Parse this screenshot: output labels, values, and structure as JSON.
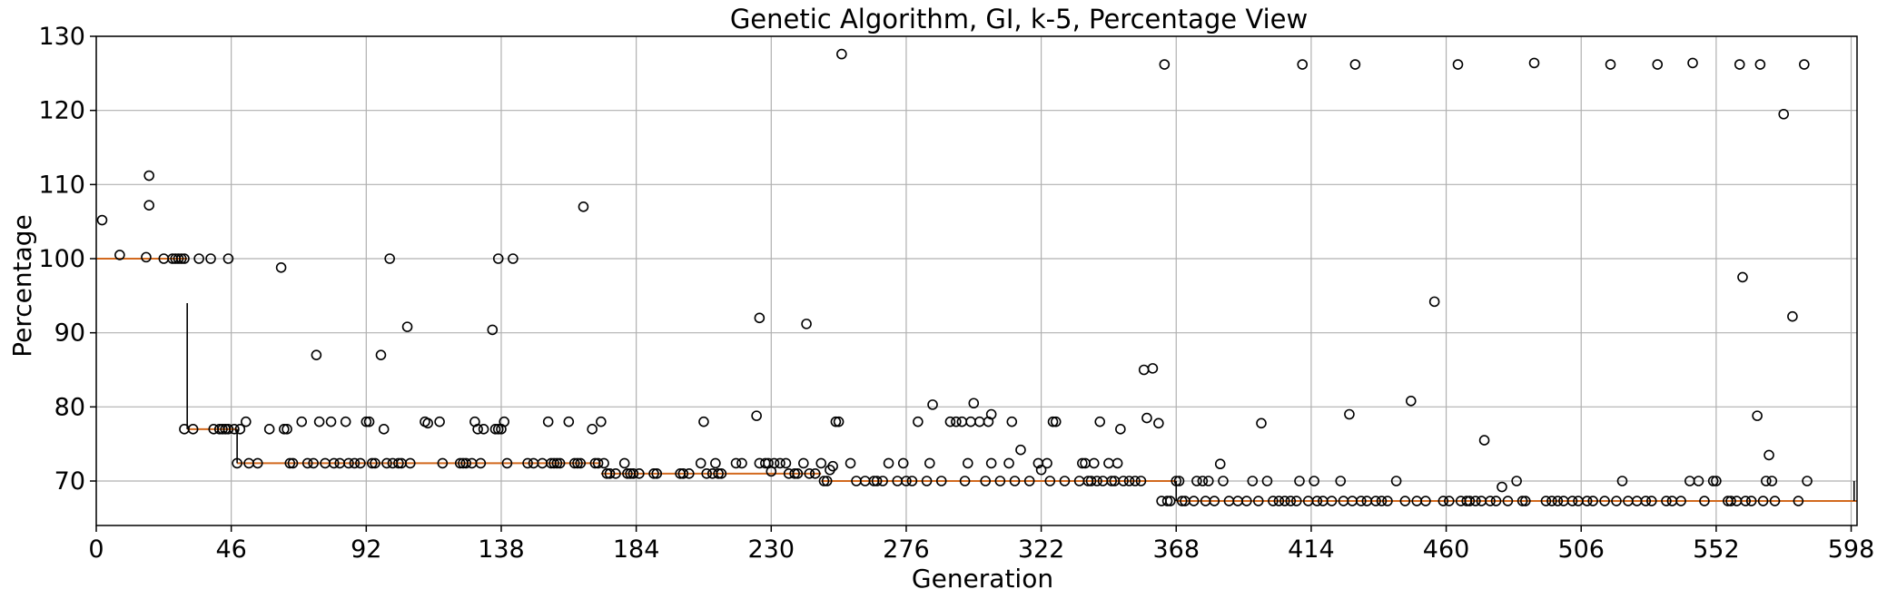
{
  "chart_data": {
    "type": "box",
    "title": "Genetic Algorithm, GI, k-5, Percentage View",
    "xlabel": "Generation",
    "ylabel": "Percentage",
    "xlim": [
      0,
      600
    ],
    "ylim": [
      64,
      130
    ],
    "xticks": [
      0,
      46,
      92,
      138,
      184,
      230,
      276,
      322,
      368,
      414,
      460,
      506,
      552,
      598
    ],
    "yticks": [
      70,
      80,
      90,
      100,
      110,
      120,
      130
    ],
    "grid": true,
    "median_color": "#d2691e",
    "median_steps": [
      {
        "from": 0,
        "to": 31,
        "value": 100
      },
      {
        "from": 31,
        "to": 48,
        "value": 77
      },
      {
        "from": 48,
        "to": 172,
        "value": 72.4
      },
      {
        "from": 172,
        "to": 247,
        "value": 71
      },
      {
        "from": 247,
        "to": 368,
        "value": 70
      },
      {
        "from": 368,
        "to": 600,
        "value": 67.3
      }
    ],
    "drop_whiskers": [
      {
        "x": 31,
        "y_low": 77,
        "y_high": 94
      },
      {
        "x": 48,
        "y_low": 72.4,
        "y_high": 77
      },
      {
        "x": 368,
        "y_low": 67.3,
        "y_high": 70
      },
      {
        "x": 599,
        "y_low": 67.3,
        "y_high": 70
      }
    ],
    "outliers": [
      [
        2,
        105.2
      ],
      [
        8,
        100.5
      ],
      [
        17,
        100.2
      ],
      [
        18,
        111.2
      ],
      [
        18,
        107.2
      ],
      [
        23,
        100
      ],
      [
        26,
        100
      ],
      [
        27,
        100
      ],
      [
        28,
        100
      ],
      [
        29,
        100
      ],
      [
        30,
        100
      ],
      [
        35,
        100
      ],
      [
        39,
        100
      ],
      [
        45,
        100
      ],
      [
        30,
        77
      ],
      [
        33,
        77
      ],
      [
        40,
        77
      ],
      [
        42,
        77
      ],
      [
        43,
        77
      ],
      [
        44,
        77
      ],
      [
        45,
        77
      ],
      [
        47,
        77
      ],
      [
        49,
        77
      ],
      [
        51,
        78
      ],
      [
        48,
        72.4
      ],
      [
        52,
        72.4
      ],
      [
        55,
        72.4
      ],
      [
        59,
        77
      ],
      [
        63,
        98.8
      ],
      [
        64,
        77
      ],
      [
        65,
        77
      ],
      [
        66,
        72.4
      ],
      [
        67,
        72.4
      ],
      [
        70,
        78
      ],
      [
        72,
        72.4
      ],
      [
        74,
        72.4
      ],
      [
        75,
        87
      ],
      [
        76,
        78
      ],
      [
        78,
        72.4
      ],
      [
        80,
        78
      ],
      [
        81,
        72.4
      ],
      [
        83,
        72.4
      ],
      [
        85,
        78
      ],
      [
        86,
        72.4
      ],
      [
        88,
        72.4
      ],
      [
        90,
        72.4
      ],
      [
        92,
        78
      ],
      [
        93,
        78
      ],
      [
        94,
        72.4
      ],
      [
        95,
        72.4
      ],
      [
        97,
        87
      ],
      [
        98,
        77
      ],
      [
        99,
        72.4
      ],
      [
        100,
        100
      ],
      [
        101,
        72.4
      ],
      [
        103,
        72.4
      ],
      [
        104,
        72.4
      ],
      [
        106,
        90.8
      ],
      [
        107,
        72.4
      ],
      [
        112,
        78
      ],
      [
        113,
        77.8
      ],
      [
        117,
        78
      ],
      [
        118,
        72.4
      ],
      [
        124,
        72.4
      ],
      [
        125,
        72.4
      ],
      [
        126,
        72.4
      ],
      [
        128,
        72.4
      ],
      [
        129,
        78
      ],
      [
        130,
        77
      ],
      [
        131,
        72.4
      ],
      [
        132,
        77
      ],
      [
        135,
        90.4
      ],
      [
        136,
        77
      ],
      [
        137,
        100
      ],
      [
        137,
        77
      ],
      [
        138,
        77
      ],
      [
        139,
        78
      ],
      [
        140,
        72.4
      ],
      [
        142,
        100
      ],
      [
        147,
        72.4
      ],
      [
        149,
        72.4
      ],
      [
        152,
        72.4
      ],
      [
        154,
        78
      ],
      [
        155,
        72.4
      ],
      [
        156,
        72.4
      ],
      [
        157,
        72.4
      ],
      [
        158,
        72.4
      ],
      [
        161,
        78
      ],
      [
        163,
        72.4
      ],
      [
        164,
        72.4
      ],
      [
        165,
        72.4
      ],
      [
        166,
        107
      ],
      [
        169,
        77
      ],
      [
        170,
        72.4
      ],
      [
        171,
        72.4
      ],
      [
        172,
        78
      ],
      [
        173,
        72.4
      ],
      [
        174,
        71
      ],
      [
        175,
        71
      ],
      [
        177,
        71
      ],
      [
        180,
        72.4
      ],
      [
        181,
        71
      ],
      [
        182,
        71
      ],
      [
        183,
        71
      ],
      [
        185,
        71
      ],
      [
        190,
        71
      ],
      [
        191,
        71
      ],
      [
        199,
        71
      ],
      [
        200,
        71
      ],
      [
        202,
        71
      ],
      [
        206,
        72.4
      ],
      [
        207,
        78
      ],
      [
        208,
        71
      ],
      [
        210,
        71
      ],
      [
        211,
        72.4
      ],
      [
        212,
        71
      ],
      [
        213,
        71
      ],
      [
        218,
        72.4
      ],
      [
        220,
        72.4
      ],
      [
        225,
        78.8
      ],
      [
        226,
        92
      ],
      [
        226,
        72.4
      ],
      [
        228,
        72.4
      ],
      [
        229,
        72.4
      ],
      [
        230,
        71.3
      ],
      [
        231,
        72.4
      ],
      [
        233,
        72.4
      ],
      [
        235,
        72.4
      ],
      [
        236,
        71
      ],
      [
        238,
        71
      ],
      [
        239,
        71
      ],
      [
        241,
        72.4
      ],
      [
        242,
        91.2
      ],
      [
        243,
        71
      ],
      [
        245,
        71
      ],
      [
        247,
        72.4
      ],
      [
        248,
        70
      ],
      [
        249,
        70
      ],
      [
        250,
        71.5
      ],
      [
        251,
        72
      ],
      [
        252,
        78
      ],
      [
        253,
        78
      ],
      [
        254,
        127.6
      ],
      [
        257,
        72.4
      ],
      [
        259,
        70
      ],
      [
        262,
        70
      ],
      [
        265,
        70
      ],
      [
        266,
        70
      ],
      [
        268,
        70
      ],
      [
        270,
        72.4
      ],
      [
        273,
        70
      ],
      [
        275,
        72.4
      ],
      [
        276,
        70
      ],
      [
        278,
        70
      ],
      [
        280,
        78
      ],
      [
        283,
        70
      ],
      [
        284,
        72.4
      ],
      [
        285,
        80.3
      ],
      [
        288,
        70
      ],
      [
        291,
        78
      ],
      [
        293,
        78
      ],
      [
        295,
        78
      ],
      [
        296,
        70
      ],
      [
        297,
        72.4
      ],
      [
        298,
        78
      ],
      [
        299,
        80.5
      ],
      [
        301,
        78
      ],
      [
        303,
        70
      ],
      [
        304,
        78
      ],
      [
        305,
        79
      ],
      [
        305,
        72.4
      ],
      [
        308,
        70
      ],
      [
        311,
        72.4
      ],
      [
        312,
        78
      ],
      [
        313,
        70
      ],
      [
        315,
        74.2
      ],
      [
        318,
        70
      ],
      [
        321,
        72.4
      ],
      [
        322,
        71.5
      ],
      [
        324,
        72.4
      ],
      [
        325,
        70
      ],
      [
        326,
        78
      ],
      [
        327,
        78
      ],
      [
        330,
        70
      ],
      [
        335,
        70
      ],
      [
        336,
        72.4
      ],
      [
        337,
        72.4
      ],
      [
        338,
        70
      ],
      [
        339,
        70
      ],
      [
        340,
        72.4
      ],
      [
        341,
        70
      ],
      [
        342,
        78
      ],
      [
        343,
        70
      ],
      [
        345,
        72.4
      ],
      [
        346,
        70
      ],
      [
        347,
        70
      ],
      [
        348,
        72.4
      ],
      [
        349,
        77
      ],
      [
        350,
        70
      ],
      [
        352,
        70
      ],
      [
        354,
        70
      ],
      [
        356,
        70
      ],
      [
        357,
        85
      ],
      [
        358,
        78.5
      ],
      [
        360,
        85.2
      ],
      [
        362,
        77.8
      ],
      [
        363,
        67.3
      ],
      [
        364,
        126.2
      ],
      [
        365,
        67.3
      ],
      [
        366,
        67.3
      ],
      [
        368,
        70
      ],
      [
        369,
        70
      ],
      [
        370,
        67.3
      ],
      [
        371,
        67.3
      ],
      [
        374,
        67.3
      ],
      [
        375,
        70
      ],
      [
        377,
        70
      ],
      [
        378,
        67.3
      ],
      [
        379,
        70
      ],
      [
        381,
        67.3
      ],
      [
        383,
        72.3
      ],
      [
        384,
        70
      ],
      [
        386,
        67.3
      ],
      [
        389,
        67.3
      ],
      [
        392,
        67.3
      ],
      [
        394,
        70
      ],
      [
        396,
        67.3
      ],
      [
        397,
        77.8
      ],
      [
        399,
        70
      ],
      [
        401,
        67.3
      ],
      [
        403,
        67.3
      ],
      [
        405,
        67.3
      ],
      [
        407,
        67.3
      ],
      [
        409,
        67.3
      ],
      [
        410,
        70
      ],
      [
        411,
        126.2
      ],
      [
        413,
        67.3
      ],
      [
        415,
        70
      ],
      [
        416,
        67.3
      ],
      [
        418,
        67.3
      ],
      [
        421,
        67.3
      ],
      [
        424,
        70
      ],
      [
        425,
        67.3
      ],
      [
        427,
        79
      ],
      [
        428,
        67.3
      ],
      [
        429,
        126.2
      ],
      [
        431,
        67.3
      ],
      [
        433,
        67.3
      ],
      [
        436,
        67.3
      ],
      [
        438,
        67.3
      ],
      [
        440,
        67.3
      ],
      [
        443,
        70
      ],
      [
        446,
        67.3
      ],
      [
        448,
        80.8
      ],
      [
        450,
        67.3
      ],
      [
        453,
        67.3
      ],
      [
        456,
        94.2
      ],
      [
        459,
        67.3
      ],
      [
        461,
        67.3
      ],
      [
        464,
        126.2
      ],
      [
        465,
        67.3
      ],
      [
        467,
        67.3
      ],
      [
        468,
        67.3
      ],
      [
        470,
        67.3
      ],
      [
        472,
        67.3
      ],
      [
        473,
        75.5
      ],
      [
        475,
        67.3
      ],
      [
        477,
        67.3
      ],
      [
        479,
        69.2
      ],
      [
        481,
        67.3
      ],
      [
        484,
        70
      ],
      [
        486,
        67.3
      ],
      [
        487,
        67.3
      ],
      [
        490,
        126.4
      ],
      [
        494,
        67.3
      ],
      [
        496,
        67.3
      ],
      [
        498,
        67.3
      ],
      [
        500,
        67.3
      ],
      [
        503,
        67.3
      ],
      [
        505,
        67.3
      ],
      [
        508,
        67.3
      ],
      [
        510,
        67.3
      ],
      [
        514,
        67.3
      ],
      [
        516,
        126.2
      ],
      [
        518,
        67.3
      ],
      [
        520,
        70
      ],
      [
        522,
        67.3
      ],
      [
        525,
        67.3
      ],
      [
        528,
        67.3
      ],
      [
        530,
        67.3
      ],
      [
        532,
        126.2
      ],
      [
        535,
        67.3
      ],
      [
        537,
        67.3
      ],
      [
        540,
        67.3
      ],
      [
        543,
        70
      ],
      [
        544,
        126.4
      ],
      [
        546,
        70
      ],
      [
        548,
        67.3
      ],
      [
        551,
        70
      ],
      [
        552,
        70
      ],
      [
        556,
        67.3
      ],
      [
        557,
        67.3
      ],
      [
        559,
        67.3
      ],
      [
        560,
        126.2
      ],
      [
        561,
        97.5
      ],
      [
        562,
        67.3
      ],
      [
        564,
        67.3
      ],
      [
        566,
        78.8
      ],
      [
        567,
        126.2
      ],
      [
        568,
        67.3
      ],
      [
        569,
        70
      ],
      [
        570,
        73.5
      ],
      [
        571,
        70
      ],
      [
        572,
        67.3
      ],
      [
        575,
        119.5
      ],
      [
        578,
        92.2
      ],
      [
        580,
        67.3
      ],
      [
        582,
        126.2
      ],
      [
        583,
        70
      ]
    ]
  }
}
